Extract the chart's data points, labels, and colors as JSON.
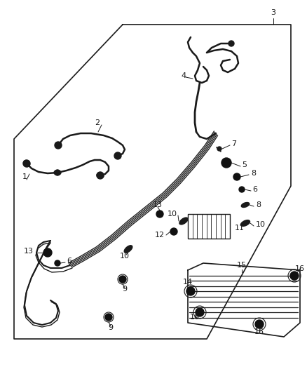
{
  "background_color": "#ffffff",
  "line_color": "#1a1a1a",
  "label_color": "#1a1a1a",
  "fig_w": 4.38,
  "fig_h": 5.33,
  "dpi": 100
}
